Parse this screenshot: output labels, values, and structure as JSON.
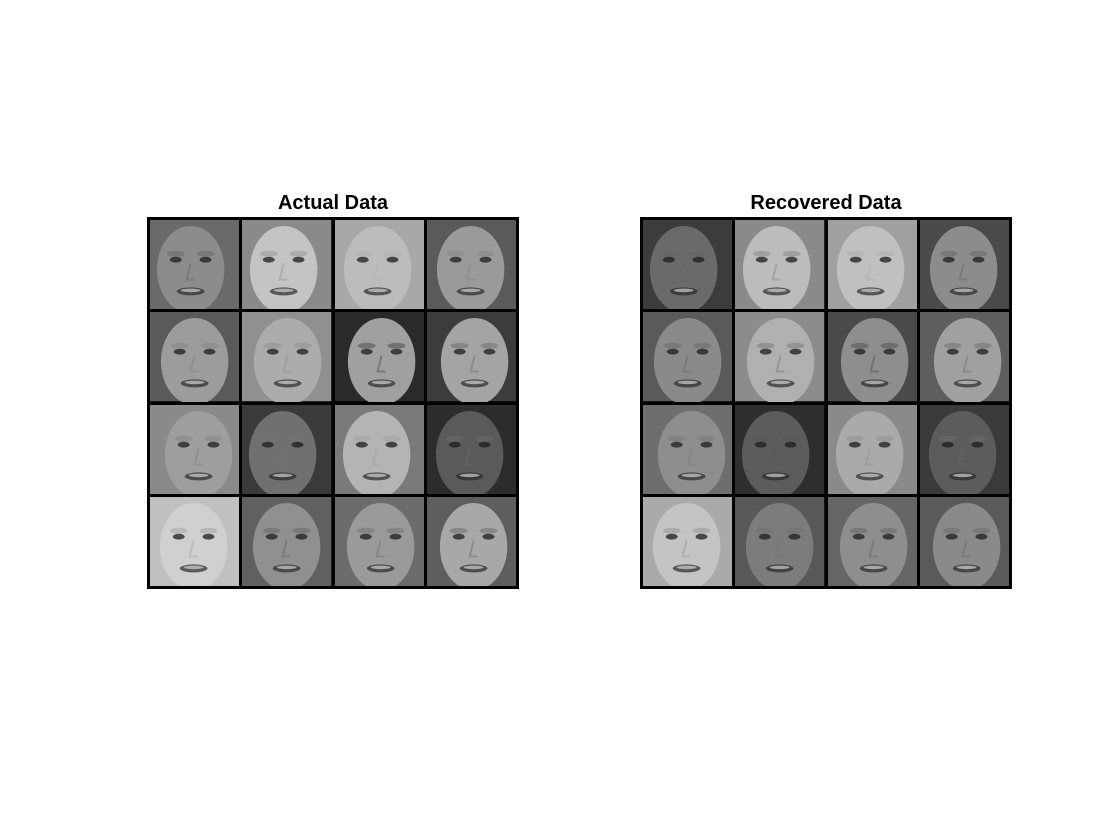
{
  "figure": {
    "panels": [
      {
        "title": "Actual Data",
        "tiles": [
          {
            "tone": "#6a6a6a",
            "skin": "#8c8c8c",
            "dark": 0.55
          },
          {
            "tone": "#8a8a8a",
            "skin": "#c4c4c4",
            "dark": 0.35
          },
          {
            "tone": "#a8a8a8",
            "skin": "#bcbcbc",
            "dark": 0.3
          },
          {
            "tone": "#5a5a5a",
            "skin": "#9a9a9a",
            "dark": 0.45
          },
          {
            "tone": "#5a5a5a",
            "skin": "#9c9c9c",
            "dark": 0.45
          },
          {
            "tone": "#909090",
            "skin": "#acacac",
            "dark": 0.4
          },
          {
            "tone": "#2a2a2a",
            "skin": "#a0a0a0",
            "dark": 0.6
          },
          {
            "tone": "#3c3c3c",
            "skin": "#a4a4a4",
            "dark": 0.5
          },
          {
            "tone": "#8a8a8a",
            "skin": "#9e9e9e",
            "dark": 0.45
          },
          {
            "tone": "#3a3a3a",
            "skin": "#707070",
            "dark": 0.55
          },
          {
            "tone": "#7a7a7a",
            "skin": "#b4b4b4",
            "dark": 0.35
          },
          {
            "tone": "#2c2c2c",
            "skin": "#5a5a5a",
            "dark": 0.6
          },
          {
            "tone": "#c0c0c0",
            "skin": "#d0d0d0",
            "dark": 0.3
          },
          {
            "tone": "#606060",
            "skin": "#909090",
            "dark": 0.55
          },
          {
            "tone": "#6c6c6c",
            "skin": "#9a9a9a",
            "dark": 0.5
          },
          {
            "tone": "#5e5e5e",
            "skin": "#a8a8a8",
            "dark": 0.5
          }
        ]
      },
      {
        "title": "Recovered Data",
        "tiles": [
          {
            "tone": "#3c3c3c",
            "skin": "#6a6a6a",
            "dark": 0.6
          },
          {
            "tone": "#8a8a8a",
            "skin": "#bcbcbc",
            "dark": 0.4
          },
          {
            "tone": "#a0a0a0",
            "skin": "#c0c0c0",
            "dark": 0.3
          },
          {
            "tone": "#4a4a4a",
            "skin": "#8c8c8c",
            "dark": 0.55
          },
          {
            "tone": "#5a5a5a",
            "skin": "#8a8a8a",
            "dark": 0.55
          },
          {
            "tone": "#8c8c8c",
            "skin": "#b0b0b0",
            "dark": 0.45
          },
          {
            "tone": "#4a4a4a",
            "skin": "#8e8e8e",
            "dark": 0.6
          },
          {
            "tone": "#5e5e5e",
            "skin": "#a0a0a0",
            "dark": 0.5
          },
          {
            "tone": "#6e6e6e",
            "skin": "#8e8e8e",
            "dark": 0.5
          },
          {
            "tone": "#2e2e2e",
            "skin": "#5c5c5c",
            "dark": 0.65
          },
          {
            "tone": "#8a8a8a",
            "skin": "#aaaaaa",
            "dark": 0.4
          },
          {
            "tone": "#3a3a3a",
            "skin": "#5c5c5c",
            "dark": 0.6
          },
          {
            "tone": "#aaaaaa",
            "skin": "#c4c4c4",
            "dark": 0.35
          },
          {
            "tone": "#585858",
            "skin": "#7c7c7c",
            "dark": 0.55
          },
          {
            "tone": "#666666",
            "skin": "#8e8e8e",
            "dark": 0.55
          },
          {
            "tone": "#5a5a5a",
            "skin": "#8a8a8a",
            "dark": 0.55
          }
        ]
      }
    ]
  }
}
